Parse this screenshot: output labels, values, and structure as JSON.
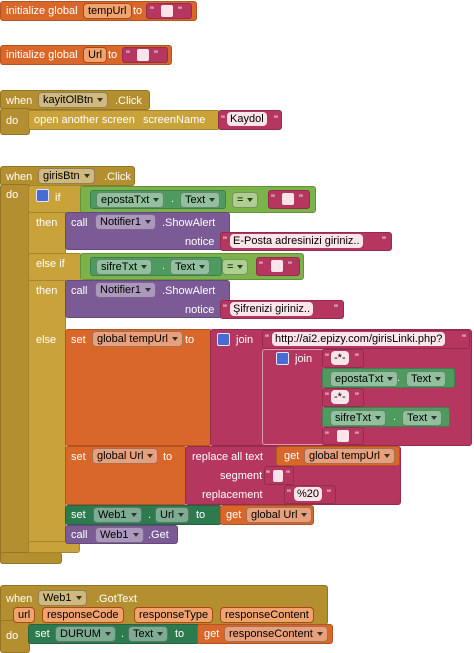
{
  "quote": "\"",
  "dot": ".",
  "init_tempUrl": {
    "keyword": "initialize global",
    "name": "tempUrl",
    "to": "to"
  },
  "init_Url": {
    "keyword": "initialize global",
    "name": "Url",
    "to": "to"
  },
  "kayitOlBtn_click": {
    "when": "when",
    "component": "kayitOlBtn",
    "event": ".Click",
    "do": "do",
    "action": "open another screen",
    "param": "screenName",
    "value": "Kaydol"
  },
  "girisBtn_click": {
    "when": "when",
    "component": "girisBtn",
    "event": ".Click",
    "do": "do",
    "if": {
      "keyword": "if",
      "component": "epostaTxt",
      "property": "Text",
      "operator": "="
    },
    "then": {
      "keyword": "then",
      "call": "call",
      "component": "Notifier1",
      "method": ".ShowAlert",
      "param": "notice",
      "value": "E-Posta adresinizi giriniz.."
    },
    "else_if": {
      "keyword": "else if",
      "component": "sifreTxt",
      "property": "Text",
      "operator": "="
    },
    "then_2": {
      "keyword": "then",
      "call": "call",
      "component": "Notifier1",
      "method": ".ShowAlert",
      "param": "notice",
      "value": "Şifrenizi giriniz.."
    },
    "else": {
      "keyword": "else",
      "set_tempUrl": {
        "set": "set",
        "variable": "global tempUrl",
        "to": "to",
        "join": "join",
        "base": "http://ai2.epizy.com/girisLinki.php?",
        "inner_join": "join",
        "sep_1": "-*-",
        "component_1": "epostaTxt",
        "property_1": "Text",
        "sep_2": "-*-",
        "component_2": "sifreTxt",
        "property_2": "Text"
      },
      "set_Url": {
        "set": "set",
        "variable": "global Url",
        "to": "to",
        "replace": "replace all text",
        "get": "get",
        "source": "global tempUrl",
        "segment": "segment",
        "replacement": "replacement",
        "replacement_value": "%20"
      },
      "set_web_url": {
        "set": "set",
        "component": "Web1",
        "property": "Url",
        "to": "to",
        "get": "get",
        "variable": "global Url"
      },
      "call_get": {
        "call": "call",
        "component": "Web1",
        "method": ".Get"
      }
    }
  },
  "web1_gottext": {
    "when": "when",
    "component": "Web1",
    "event": ".GotText",
    "params": [
      "url",
      "responseCode",
      "responseType",
      "responseContent"
    ],
    "do": "do",
    "set": "set",
    "target": "DURUM",
    "property": "Text",
    "to": "to",
    "get": "get",
    "variable": "responseContent"
  }
}
